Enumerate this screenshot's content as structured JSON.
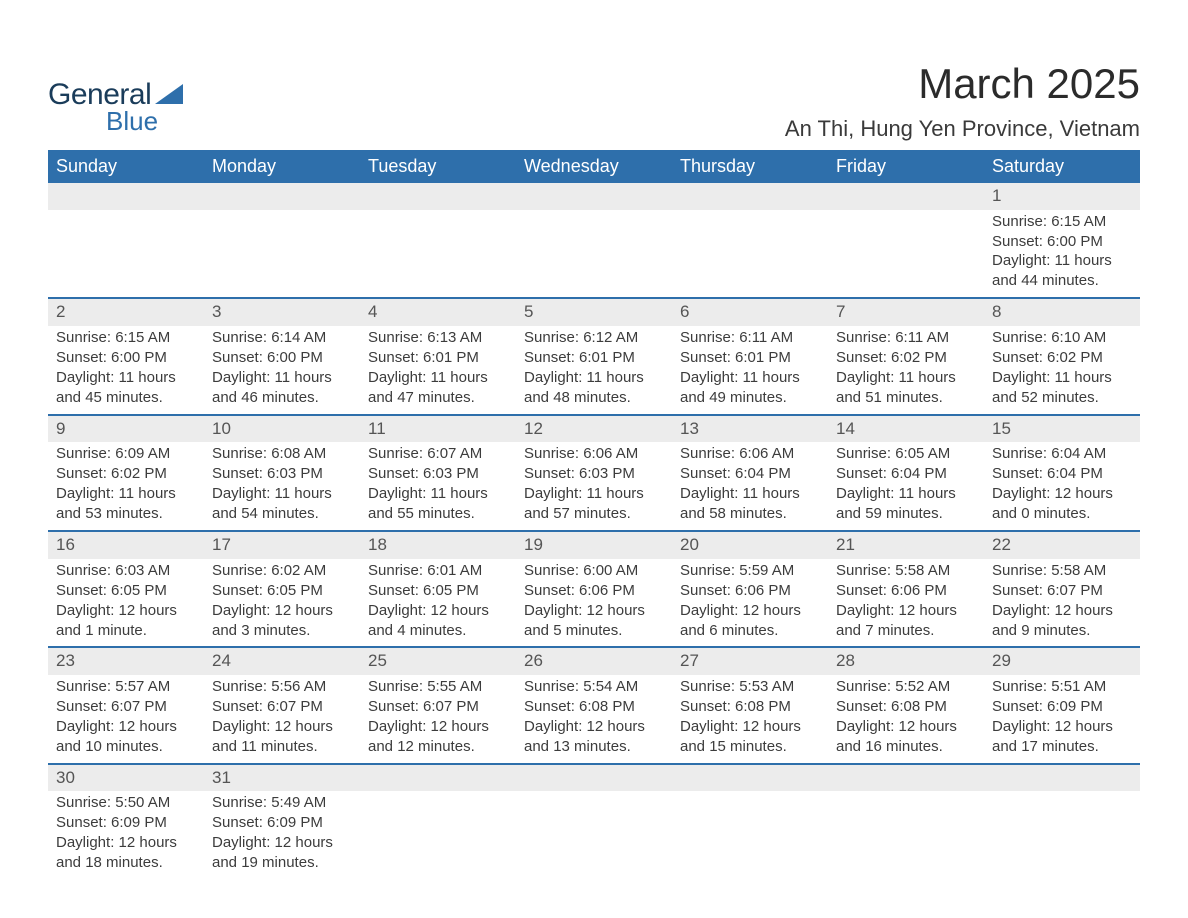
{
  "logo": {
    "general": "General",
    "blue": "Blue"
  },
  "title": "March 2025",
  "location": "An Thi, Hung Yen Province, Vietnam",
  "colors": {
    "header_bg": "#2e6fab",
    "header_text": "#ffffff",
    "daynum_bg": "#ececec",
    "row_border": "#2e6fab",
    "body_text": "#3c3c3c",
    "logo_general": "#1a3c5a",
    "logo_blue": "#2e6fab"
  },
  "day_headers": [
    "Sunday",
    "Monday",
    "Tuesday",
    "Wednesday",
    "Thursday",
    "Friday",
    "Saturday"
  ],
  "weeks": [
    [
      null,
      null,
      null,
      null,
      null,
      null,
      {
        "n": "1",
        "sr": "Sunrise: 6:15 AM",
        "ss": "Sunset: 6:00 PM",
        "d1": "Daylight: 11 hours",
        "d2": "and 44 minutes."
      }
    ],
    [
      {
        "n": "2",
        "sr": "Sunrise: 6:15 AM",
        "ss": "Sunset: 6:00 PM",
        "d1": "Daylight: 11 hours",
        "d2": "and 45 minutes."
      },
      {
        "n": "3",
        "sr": "Sunrise: 6:14 AM",
        "ss": "Sunset: 6:00 PM",
        "d1": "Daylight: 11 hours",
        "d2": "and 46 minutes."
      },
      {
        "n": "4",
        "sr": "Sunrise: 6:13 AM",
        "ss": "Sunset: 6:01 PM",
        "d1": "Daylight: 11 hours",
        "d2": "and 47 minutes."
      },
      {
        "n": "5",
        "sr": "Sunrise: 6:12 AM",
        "ss": "Sunset: 6:01 PM",
        "d1": "Daylight: 11 hours",
        "d2": "and 48 minutes."
      },
      {
        "n": "6",
        "sr": "Sunrise: 6:11 AM",
        "ss": "Sunset: 6:01 PM",
        "d1": "Daylight: 11 hours",
        "d2": "and 49 minutes."
      },
      {
        "n": "7",
        "sr": "Sunrise: 6:11 AM",
        "ss": "Sunset: 6:02 PM",
        "d1": "Daylight: 11 hours",
        "d2": "and 51 minutes."
      },
      {
        "n": "8",
        "sr": "Sunrise: 6:10 AM",
        "ss": "Sunset: 6:02 PM",
        "d1": "Daylight: 11 hours",
        "d2": "and 52 minutes."
      }
    ],
    [
      {
        "n": "9",
        "sr": "Sunrise: 6:09 AM",
        "ss": "Sunset: 6:02 PM",
        "d1": "Daylight: 11 hours",
        "d2": "and 53 minutes."
      },
      {
        "n": "10",
        "sr": "Sunrise: 6:08 AM",
        "ss": "Sunset: 6:03 PM",
        "d1": "Daylight: 11 hours",
        "d2": "and 54 minutes."
      },
      {
        "n": "11",
        "sr": "Sunrise: 6:07 AM",
        "ss": "Sunset: 6:03 PM",
        "d1": "Daylight: 11 hours",
        "d2": "and 55 minutes."
      },
      {
        "n": "12",
        "sr": "Sunrise: 6:06 AM",
        "ss": "Sunset: 6:03 PM",
        "d1": "Daylight: 11 hours",
        "d2": "and 57 minutes."
      },
      {
        "n": "13",
        "sr": "Sunrise: 6:06 AM",
        "ss": "Sunset: 6:04 PM",
        "d1": "Daylight: 11 hours",
        "d2": "and 58 minutes."
      },
      {
        "n": "14",
        "sr": "Sunrise: 6:05 AM",
        "ss": "Sunset: 6:04 PM",
        "d1": "Daylight: 11 hours",
        "d2": "and 59 minutes."
      },
      {
        "n": "15",
        "sr": "Sunrise: 6:04 AM",
        "ss": "Sunset: 6:04 PM",
        "d1": "Daylight: 12 hours",
        "d2": "and 0 minutes."
      }
    ],
    [
      {
        "n": "16",
        "sr": "Sunrise: 6:03 AM",
        "ss": "Sunset: 6:05 PM",
        "d1": "Daylight: 12 hours",
        "d2": "and 1 minute."
      },
      {
        "n": "17",
        "sr": "Sunrise: 6:02 AM",
        "ss": "Sunset: 6:05 PM",
        "d1": "Daylight: 12 hours",
        "d2": "and 3 minutes."
      },
      {
        "n": "18",
        "sr": "Sunrise: 6:01 AM",
        "ss": "Sunset: 6:05 PM",
        "d1": "Daylight: 12 hours",
        "d2": "and 4 minutes."
      },
      {
        "n": "19",
        "sr": "Sunrise: 6:00 AM",
        "ss": "Sunset: 6:06 PM",
        "d1": "Daylight: 12 hours",
        "d2": "and 5 minutes."
      },
      {
        "n": "20",
        "sr": "Sunrise: 5:59 AM",
        "ss": "Sunset: 6:06 PM",
        "d1": "Daylight: 12 hours",
        "d2": "and 6 minutes."
      },
      {
        "n": "21",
        "sr": "Sunrise: 5:58 AM",
        "ss": "Sunset: 6:06 PM",
        "d1": "Daylight: 12 hours",
        "d2": "and 7 minutes."
      },
      {
        "n": "22",
        "sr": "Sunrise: 5:58 AM",
        "ss": "Sunset: 6:07 PM",
        "d1": "Daylight: 12 hours",
        "d2": "and 9 minutes."
      }
    ],
    [
      {
        "n": "23",
        "sr": "Sunrise: 5:57 AM",
        "ss": "Sunset: 6:07 PM",
        "d1": "Daylight: 12 hours",
        "d2": "and 10 minutes."
      },
      {
        "n": "24",
        "sr": "Sunrise: 5:56 AM",
        "ss": "Sunset: 6:07 PM",
        "d1": "Daylight: 12 hours",
        "d2": "and 11 minutes."
      },
      {
        "n": "25",
        "sr": "Sunrise: 5:55 AM",
        "ss": "Sunset: 6:07 PM",
        "d1": "Daylight: 12 hours",
        "d2": "and 12 minutes."
      },
      {
        "n": "26",
        "sr": "Sunrise: 5:54 AM",
        "ss": "Sunset: 6:08 PM",
        "d1": "Daylight: 12 hours",
        "d2": "and 13 minutes."
      },
      {
        "n": "27",
        "sr": "Sunrise: 5:53 AM",
        "ss": "Sunset: 6:08 PM",
        "d1": "Daylight: 12 hours",
        "d2": "and 15 minutes."
      },
      {
        "n": "28",
        "sr": "Sunrise: 5:52 AM",
        "ss": "Sunset: 6:08 PM",
        "d1": "Daylight: 12 hours",
        "d2": "and 16 minutes."
      },
      {
        "n": "29",
        "sr": "Sunrise: 5:51 AM",
        "ss": "Sunset: 6:09 PM",
        "d1": "Daylight: 12 hours",
        "d2": "and 17 minutes."
      }
    ],
    [
      {
        "n": "30",
        "sr": "Sunrise: 5:50 AM",
        "ss": "Sunset: 6:09 PM",
        "d1": "Daylight: 12 hours",
        "d2": "and 18 minutes."
      },
      {
        "n": "31",
        "sr": "Sunrise: 5:49 AM",
        "ss": "Sunset: 6:09 PM",
        "d1": "Daylight: 12 hours",
        "d2": "and 19 minutes."
      },
      null,
      null,
      null,
      null,
      null
    ]
  ]
}
